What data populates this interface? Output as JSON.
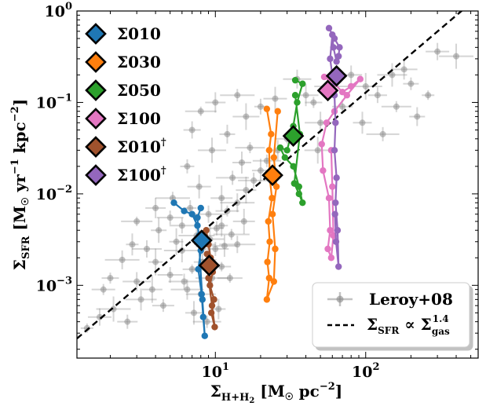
{
  "chart_data": {
    "type": "scatter",
    "xscale": "log",
    "yscale": "log",
    "xlim": [
      1.2,
      560
    ],
    "ylim": [
      0.00016,
      1.0
    ],
    "xlabel_parts": {
      "base": "Σ",
      "sub": "H+H",
      "sub2": "2",
      "units": " [M",
      "sun": "☉",
      "units2": " pc",
      "sup": "−2",
      "close": "]"
    },
    "ylabel_parts": {
      "base": "Σ",
      "sub": "SFR",
      "units": " [M",
      "sun": "☉",
      "units2": " yr",
      "sup1": "−1",
      "units3": " kpc",
      "sup2": "−2",
      "close": "]"
    },
    "x_ticks": [
      {
        "value": 10,
        "label": "10",
        "sup": "1"
      },
      {
        "value": 100,
        "label": "10",
        "sup": "2"
      }
    ],
    "y_ticks": [
      {
        "value": 0.001,
        "label": "10",
        "sup": "−3"
      },
      {
        "value": 0.01,
        "label": "10",
        "sup": "−2"
      },
      {
        "value": 0.1,
        "label": "10",
        "sup": "−1"
      },
      {
        "value": 1.0,
        "label": "10",
        "sup": "0"
      }
    ],
    "relation": {
      "label": "Σ",
      "label_sub": "SFR",
      "label_mid": " ∝ Σ",
      "label_sub2": "gas",
      "label_sup": "1.4",
      "x": [
        1.2,
        560
      ],
      "y": [
        0.000262,
        1.43
      ],
      "color": "#000000"
    },
    "observations": {
      "name": "Leroy+08",
      "color": "#888888",
      "points": [
        [
          1.4,
          0.00034
        ],
        [
          1.7,
          0.00045
        ],
        [
          2.1,
          0.00055
        ],
        [
          2.6,
          0.0004
        ],
        [
          3.2,
          0.0007
        ],
        [
          2.0,
          0.0012
        ],
        [
          3.0,
          0.0011
        ],
        [
          4.0,
          0.0018
        ],
        [
          5.0,
          0.0013
        ],
        [
          6.0,
          0.0024
        ],
        [
          4.5,
          0.0006
        ],
        [
          6.5,
          0.0009
        ],
        [
          7.0,
          0.0015
        ],
        [
          8.0,
          0.0008
        ],
        [
          9.0,
          0.0019
        ],
        [
          10.0,
          0.0025
        ],
        [
          11.0,
          0.0045
        ],
        [
          12.0,
          0.0065
        ],
        [
          14.0,
          0.008
        ],
        [
          16.0,
          0.011
        ],
        [
          18.0,
          0.014
        ],
        [
          20.0,
          0.018
        ],
        [
          22.0,
          0.023
        ],
        [
          26.0,
          0.03
        ],
        [
          30.0,
          0.04
        ],
        [
          9.0,
          0.006
        ],
        [
          11.0,
          0.009
        ],
        [
          13.0,
          0.015
        ],
        [
          15.0,
          0.022
        ],
        [
          17.0,
          0.032
        ],
        [
          12.0,
          0.045
        ],
        [
          16.0,
          0.07
        ],
        [
          20.0,
          0.09
        ],
        [
          25.0,
          0.11
        ],
        [
          14.0,
          0.12
        ],
        [
          10.0,
          0.1
        ],
        [
          8.0,
          0.08
        ],
        [
          7.0,
          0.05
        ],
        [
          9.5,
          0.03
        ],
        [
          6.5,
          0.02
        ],
        [
          40.0,
          0.12
        ],
        [
          60.0,
          0.15
        ],
        [
          80.0,
          0.2
        ],
        [
          100.0,
          0.15
        ],
        [
          120.0,
          0.12
        ],
        [
          150.0,
          0.2
        ],
        [
          200.0,
          0.16
        ],
        [
          180.0,
          0.23
        ],
        [
          260.0,
          0.12
        ],
        [
          300.0,
          0.36
        ],
        [
          400.0,
          0.32
        ],
        [
          70.0,
          0.09
        ],
        [
          50.0,
          0.06
        ],
        [
          45.0,
          0.1
        ],
        [
          35.0,
          0.18
        ],
        [
          5.5,
          0.003
        ],
        [
          6.0,
          0.0045
        ],
        [
          7.5,
          0.0035
        ],
        [
          8.5,
          0.0028
        ],
        [
          9.5,
          0.0012
        ],
        [
          11.0,
          0.0016
        ],
        [
          3.5,
          0.0025
        ],
        [
          4.2,
          0.004
        ],
        [
          5.0,
          0.0055
        ],
        [
          2.8,
          0.0028
        ],
        [
          1.8,
          0.0009
        ],
        [
          2.4,
          0.0019
        ],
        [
          3.8,
          0.0009
        ],
        [
          6.2,
          0.0011
        ],
        [
          7.2,
          0.0005
        ],
        [
          8.8,
          0.0004
        ],
        [
          10.5,
          0.00055
        ],
        [
          12.5,
          0.0012
        ],
        [
          14.0,
          0.0028
        ],
        [
          15.5,
          0.005
        ],
        [
          130.0,
          0.045
        ],
        [
          95.0,
          0.06
        ],
        [
          160.0,
          0.09
        ],
        [
          220.0,
          0.07
        ],
        [
          48.0,
          0.03
        ],
        [
          6.8,
          0.007
        ],
        [
          7.8,
          0.012
        ],
        [
          5.2,
          0.009
        ],
        [
          4.0,
          0.007
        ],
        [
          3.0,
          0.005
        ],
        [
          8.2,
          0.0018
        ],
        [
          9.2,
          0.0032
        ],
        [
          10.2,
          0.0042
        ],
        [
          11.5,
          0.0027
        ],
        [
          12.8,
          0.0036
        ]
      ]
    },
    "series": [
      {
        "name": "Σ010",
        "sup": "",
        "color": "#1f77b4",
        "edge": "#000000",
        "trajectory": [
          [
            5.3,
            0.008
          ],
          [
            6.2,
            0.0065
          ],
          [
            7.0,
            0.006
          ],
          [
            7.6,
            0.0045
          ],
          [
            7.8,
            0.0035
          ],
          [
            8.0,
            0.0024
          ],
          [
            7.7,
            0.0015
          ],
          [
            8.1,
            0.0008
          ],
          [
            8.3,
            0.00045
          ],
          [
            8.5,
            0.00028
          ],
          [
            8.2,
            0.0007
          ],
          [
            7.6,
            0.0055
          ],
          [
            8.0,
            0.007
          ]
        ],
        "mean": [
          8.1,
          0.0031
        ]
      },
      {
        "name": "Σ030",
        "sup": "",
        "color": "#ff7f0e",
        "edge": "#000000",
        "trajectory": [
          [
            22.0,
            0.085
          ],
          [
            23.5,
            0.045
          ],
          [
            22.8,
            0.03
          ],
          [
            23.0,
            0.015
          ],
          [
            23.8,
            0.009
          ],
          [
            22.5,
            0.005
          ],
          [
            23.0,
            0.003
          ],
          [
            22.2,
            0.0018
          ],
          [
            22.8,
            0.0012
          ],
          [
            22.0,
            0.0007
          ],
          [
            24.5,
            0.0011
          ],
          [
            25.0,
            0.0025
          ],
          [
            24.0,
            0.006
          ],
          [
            25.5,
            0.012
          ],
          [
            24.5,
            0.025
          ],
          [
            26.0,
            0.08
          ]
        ],
        "mean": [
          24.0,
          0.016
        ]
      },
      {
        "name": "Σ050",
        "sup": "",
        "color": "#2ca02c",
        "edge": "#000000",
        "trajectory": [
          [
            34.0,
            0.175
          ],
          [
            38.0,
            0.16
          ],
          [
            35.0,
            0.1
          ],
          [
            33.0,
            0.055
          ],
          [
            30.0,
            0.03
          ],
          [
            27.0,
            0.032
          ],
          [
            29.0,
            0.025
          ],
          [
            33.0,
            0.02
          ],
          [
            36.0,
            0.012
          ],
          [
            38.0,
            0.008
          ],
          [
            36.0,
            0.01
          ],
          [
            33.5,
            0.013
          ],
          [
            36.5,
            0.045
          ],
          [
            34.0,
            0.12
          ]
        ],
        "mean": [
          33.0,
          0.043
        ]
      },
      {
        "name": "Σ100",
        "sup": "",
        "color": "#e377c2",
        "edge": "#000000",
        "trajectory": [
          [
            53.0,
            0.19
          ],
          [
            62.0,
            0.16
          ],
          [
            70.0,
            0.13
          ],
          [
            80.0,
            0.15
          ],
          [
            92.0,
            0.18
          ],
          [
            75.0,
            0.12
          ],
          [
            62.0,
            0.08
          ],
          [
            55.0,
            0.06
          ],
          [
            51.0,
            0.035
          ],
          [
            52.0,
            0.018
          ],
          [
            57.0,
            0.009
          ],
          [
            58.0,
            0.004
          ],
          [
            56.0,
            0.0025
          ],
          [
            59.0,
            0.002
          ],
          [
            61.0,
            0.0035
          ],
          [
            60.0,
            0.012
          ],
          [
            59.0,
            0.03
          ]
        ],
        "mean": [
          56.0,
          0.135
        ]
      },
      {
        "name": "Σ010",
        "sup": "†",
        "color": "#a0522d",
        "edge": "#000000",
        "trajectory": [
          [
            8.7,
            0.004
          ],
          [
            9.0,
            0.0028
          ],
          [
            9.3,
            0.002
          ],
          [
            9.6,
            0.0014
          ],
          [
            9.2,
            0.001
          ],
          [
            9.8,
            0.0007
          ],
          [
            9.4,
            0.0005
          ],
          [
            9.9,
            0.00035
          ],
          [
            9.5,
            0.0006
          ],
          [
            9.0,
            0.0012
          ],
          [
            8.8,
            0.0022
          ]
        ],
        "mean": [
          9.1,
          0.00165
        ]
      },
      {
        "name": "Σ100",
        "sup": "†",
        "color": "#9467bd",
        "edge": "#000000",
        "trajectory": [
          [
            57.0,
            0.65
          ],
          [
            62.0,
            0.5
          ],
          [
            67.0,
            0.4
          ],
          [
            66.0,
            0.32
          ],
          [
            64.0,
            0.28
          ],
          [
            61.0,
            0.4
          ],
          [
            60.0,
            0.55
          ],
          [
            58.0,
            0.3
          ],
          [
            60.0,
            0.2
          ],
          [
            62.0,
            0.12
          ],
          [
            63.0,
            0.06
          ],
          [
            62.0,
            0.03
          ],
          [
            64.0,
            0.015
          ],
          [
            63.0,
            0.008
          ],
          [
            65.0,
            0.004
          ],
          [
            66.0,
            0.0016
          ],
          [
            63.5,
            0.003
          ],
          [
            62.5,
            0.006
          ]
        ],
        "mean": [
          64.0,
          0.195
        ]
      }
    ],
    "legend_upper": {
      "placement": "upper-left"
    },
    "legend_lower": {
      "placement": "lower-right",
      "obs_label": "Leroy+08"
    }
  }
}
